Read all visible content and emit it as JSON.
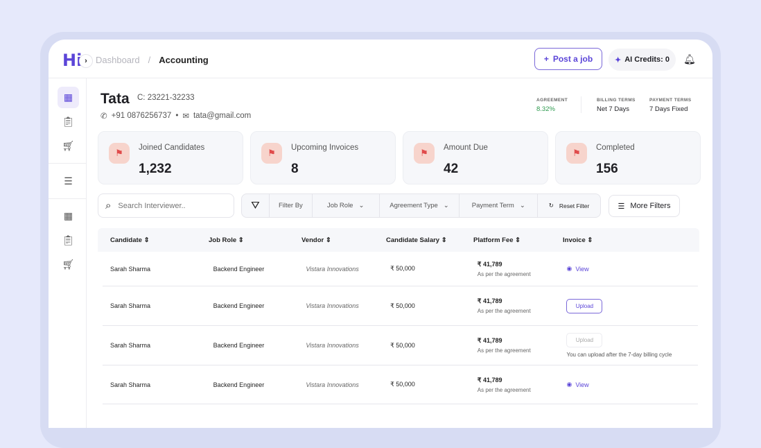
{
  "header": {
    "logo": "Hi",
    "breadcrumb": [
      "Dashboard",
      "Accounting"
    ],
    "post_job": "Post a job",
    "ai_credits": "AI Credits: 0"
  },
  "company": {
    "name": "Tata",
    "code": "C: 23221-32233",
    "phone": "+91 0876256737",
    "email": "tata@gmail.com"
  },
  "terms": [
    {
      "label": "AGREEMENT",
      "value": "8.32%",
      "color": "#2e9a4f"
    },
    {
      "label": "BILLING TERMS",
      "value": "Net 7 Days"
    },
    {
      "label": "PAYMENT TERMS",
      "value": "7 Days Fixed"
    }
  ],
  "stats": [
    {
      "label": "Joined Candidates",
      "value": "1,232"
    },
    {
      "label": "Upcoming Invoices",
      "value": "8"
    },
    {
      "label": "Amount Due",
      "value": "42"
    },
    {
      "label": "Completed",
      "value": "156"
    }
  ],
  "search": {
    "placeholder": "Search Interviewer.."
  },
  "filters": {
    "filter_by": "Filter By",
    "job_role": "Job Role",
    "agreement_type": "Agreement Type",
    "payment_term": "Payment Term",
    "reset": "Reset Filter",
    "more": "More Filters"
  },
  "table": {
    "columns": [
      "Candidate",
      "Job Role",
      "Vendor",
      "Candidate Salary",
      "Platform Fee",
      "Invoice"
    ],
    "rows": [
      {
        "candidate": "Sarah Sharma",
        "role": "Backend Engineer",
        "vendor": "Vistara Innovations",
        "salary": "₹ 50,000",
        "fee": "₹ 41,789",
        "fee_note": "As per the agreement",
        "invoice": "View"
      },
      {
        "candidate": "Sarah Sharma",
        "role": "Backend Engineer",
        "vendor": "Vistara Innovations",
        "salary": "₹ 50,000",
        "fee": "₹ 41,789",
        "fee_note": "As per the agreement",
        "invoice": "Upload"
      },
      {
        "candidate": "Sarah Sharma",
        "role": "Backend Engineer",
        "vendor": "Vistara Innovations",
        "salary": "₹ 50,000",
        "fee": "₹ 41,789",
        "fee_note": "As per the agreement",
        "invoice": "Upload",
        "invoice_note": "You can upload after the 7-day billing cycle"
      },
      {
        "candidate": "Sarah Sharma",
        "role": "Backend Engineer",
        "vendor": "Vistara Innovations",
        "salary": "₹ 50,000",
        "fee": "₹ 41,789",
        "fee_note": "As per the agreement",
        "invoice": "View"
      }
    ]
  },
  "colors": {
    "accent": "#5b45d8",
    "background": "#e6e9fb"
  }
}
